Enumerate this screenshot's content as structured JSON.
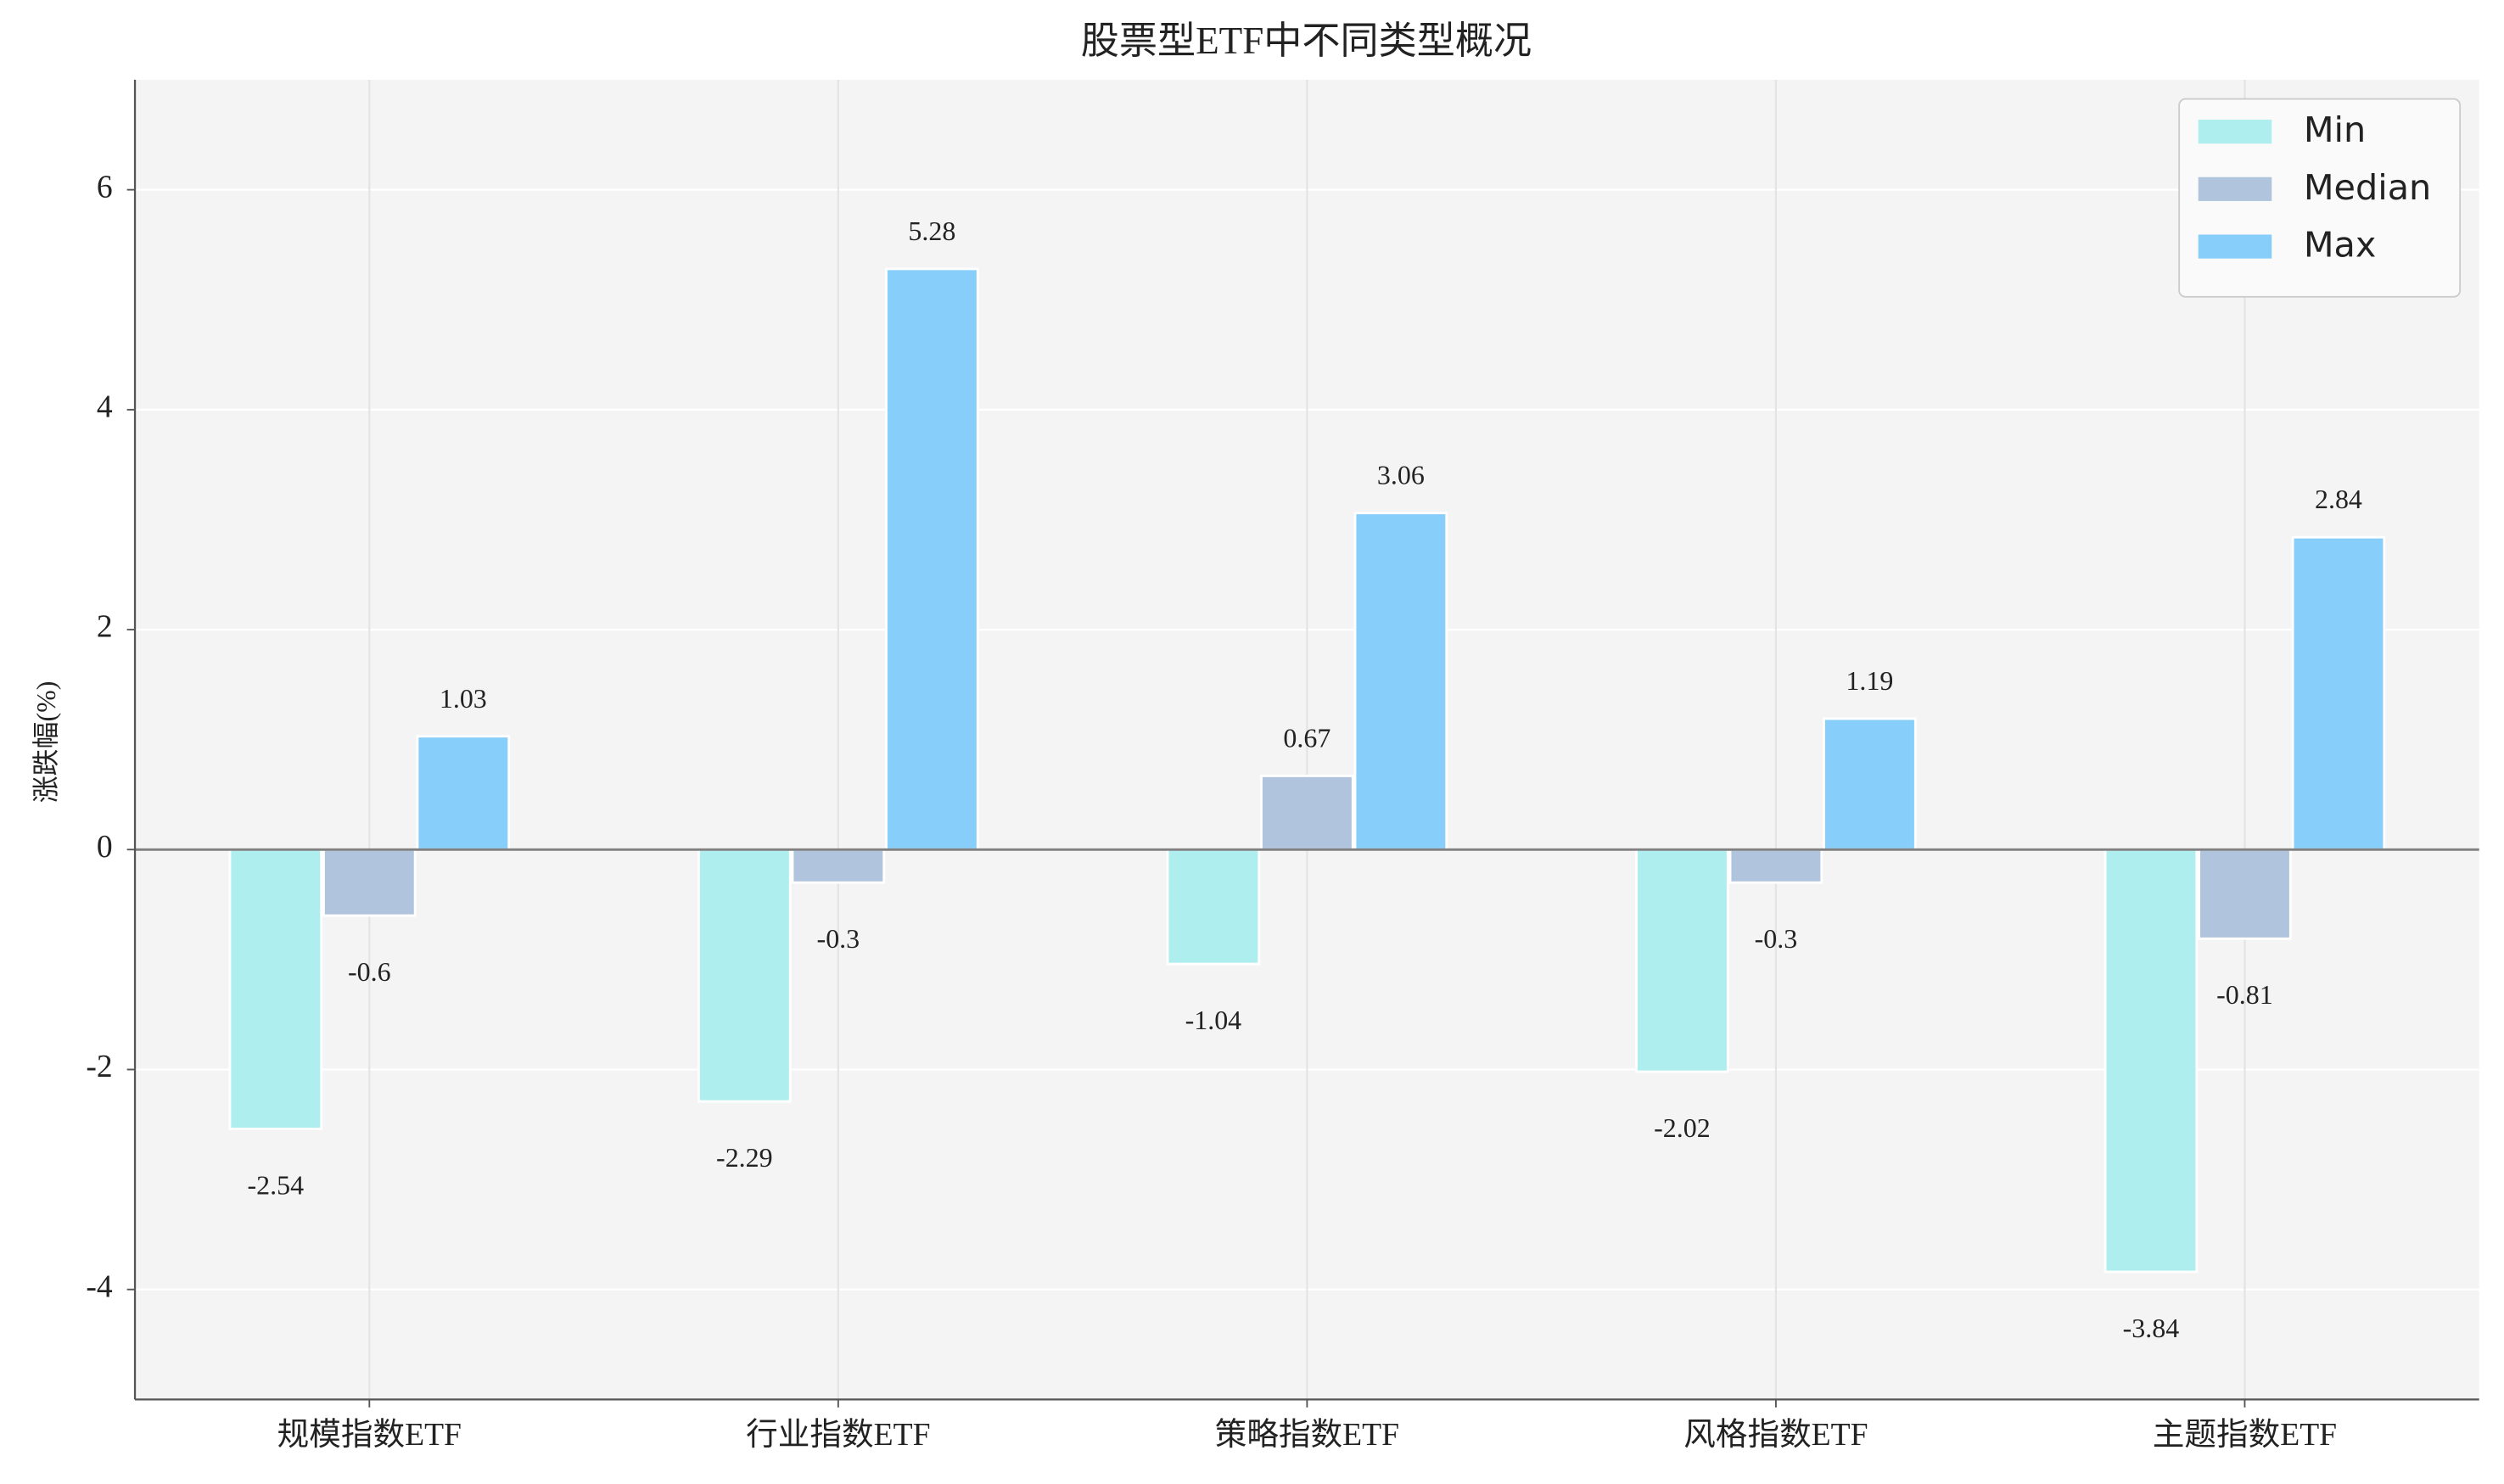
{
  "chart_data": {
    "type": "bar",
    "title": "股票型ETF中不同类型概况",
    "y_label": "涨跌幅(%)",
    "categories": [
      "规模指数ETF",
      "行业指数ETF",
      "策略指数ETF",
      "风格指数ETF",
      "主题指数ETF"
    ],
    "series": [
      {
        "name": "Min",
        "color": "#afeeee",
        "values": [
          -2.54,
          -2.29,
          -1.04,
          -2.02,
          -3.84
        ]
      },
      {
        "name": "Median",
        "color": "#b0c4de",
        "values": [
          -0.6,
          -0.3,
          0.67,
          -0.3,
          -0.81
        ]
      },
      {
        "name": "Max",
        "color": "#87cefa",
        "values": [
          1.03,
          5.28,
          3.06,
          1.19,
          2.84
        ]
      }
    ],
    "ylim": [
      -5,
      7
    ],
    "yticks": [
      -4,
      -2,
      0,
      2,
      4,
      6
    ],
    "grid": true,
    "legend": "upper right"
  }
}
